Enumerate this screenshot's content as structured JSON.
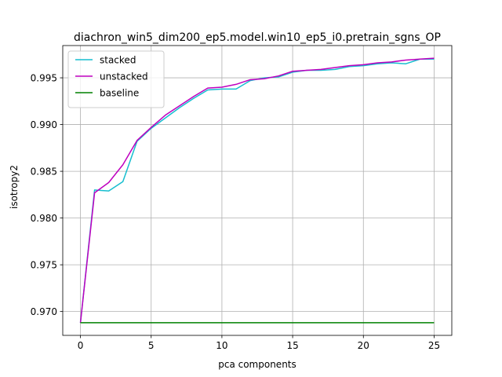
{
  "chart_data": {
    "type": "line",
    "title": "diachron_win5_dim200_ep5.model.win10_ep5_i0.pretrain_sgns_OP",
    "xlabel": "pca components",
    "ylabel": "isotropy2",
    "xlim": [
      -1.25,
      26.25
    ],
    "ylim": [
      0.96745,
      0.99845
    ],
    "xticks": [
      0,
      5,
      10,
      15,
      20,
      25
    ],
    "xtick_labels": [
      "0",
      "5",
      "10",
      "15",
      "20",
      "25"
    ],
    "yticks": [
      0.97,
      0.975,
      0.98,
      0.985,
      0.99,
      0.995
    ],
    "ytick_labels": [
      "0.970",
      "0.975",
      "0.980",
      "0.985",
      "0.990",
      "0.995"
    ],
    "grid": true,
    "legend_position": "top-left",
    "x": [
      0,
      1,
      2,
      3,
      4,
      5,
      6,
      7,
      8,
      9,
      10,
      11,
      12,
      13,
      14,
      15,
      16,
      17,
      18,
      19,
      20,
      21,
      22,
      23,
      24,
      25
    ],
    "series": [
      {
        "name": "stacked",
        "color": "#17becf",
        "values": [
          0.9688,
          0.983,
          0.9829,
          0.9839,
          0.9882,
          0.9896,
          0.9907,
          0.9918,
          0.9928,
          0.9937,
          0.9938,
          0.9938,
          0.9947,
          0.995,
          0.9951,
          0.9956,
          0.9958,
          0.9958,
          0.9959,
          0.9962,
          0.9963,
          0.9965,
          0.9966,
          0.9965,
          0.997,
          0.997
        ]
      },
      {
        "name": "unstacked",
        "color": "#bf00bf",
        "values": [
          0.9688,
          0.9827,
          0.9838,
          0.9857,
          0.9883,
          0.9897,
          0.991,
          0.992,
          0.993,
          0.9939,
          0.994,
          0.9943,
          0.9948,
          0.9949,
          0.9952,
          0.9957,
          0.9958,
          0.9959,
          0.9961,
          0.9963,
          0.9964,
          0.9966,
          0.9967,
          0.9969,
          0.997,
          0.9971
        ]
      },
      {
        "name": "baseline",
        "color": "#008000",
        "values": [
          0.9688,
          0.9688,
          0.9688,
          0.9688,
          0.9688,
          0.9688,
          0.9688,
          0.9688,
          0.9688,
          0.9688,
          0.9688,
          0.9688,
          0.9688,
          0.9688,
          0.9688,
          0.9688,
          0.9688,
          0.9688,
          0.9688,
          0.9688,
          0.9688,
          0.9688,
          0.9688,
          0.9688,
          0.9688,
          0.9688
        ]
      }
    ]
  }
}
